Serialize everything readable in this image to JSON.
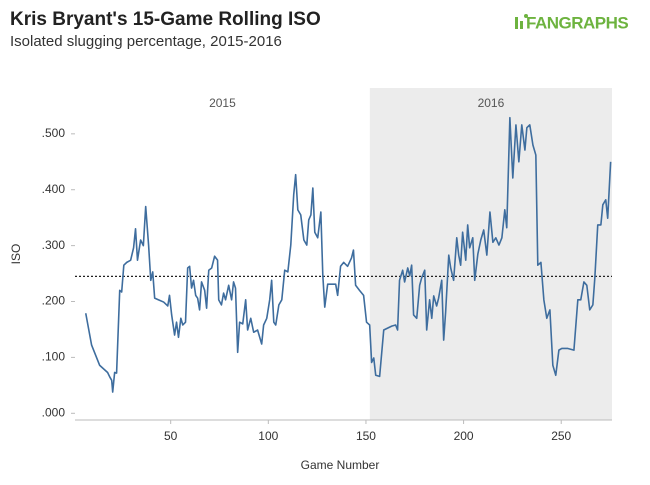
{
  "chart_data": {
    "type": "line",
    "title": "Kris Bryant's 15-Game Rolling ISO",
    "subtitle": "Isolated slugging percentage, 2015-2016",
    "logo": "FANGRAPHS",
    "x_label": "Game Number",
    "y_label": "ISO",
    "color": "#3e6d9e",
    "reference_line": 0.245,
    "periods": [
      {
        "label": "2015",
        "start": 1,
        "end": 152,
        "shaded": false
      },
      {
        "label": "2016",
        "start": 152,
        "end": 276,
        "shaded": true
      }
    ],
    "xlim": [
      1,
      276
    ],
    "ylim": [
      -0.012,
      0.582
    ],
    "xticks": [
      50,
      100,
      150,
      200,
      250
    ],
    "yticks": [
      {
        "value": 0,
        "label": ".000"
      },
      {
        "value": 0.1,
        "label": ".100"
      },
      {
        "value": 0.2,
        "label": ".200"
      },
      {
        "value": 0.3,
        "label": ".300"
      },
      {
        "value": 0.4,
        "label": ".400"
      },
      {
        "value": 0.5,
        "label": ".500"
      }
    ],
    "x": [
      6.5,
      9.5,
      13.6,
      17.7,
      18.8,
      19.8,
      20.3,
      21.3,
      22.3,
      23.9,
      24.9,
      26,
      27.5,
      29.5,
      31,
      32,
      33,
      34.6,
      36,
      37.2,
      38.7,
      39.8,
      40.8,
      41.8,
      43.8,
      46.4,
      48.5,
      49.4,
      50.5,
      52,
      53,
      54,
      55.2,
      56.2,
      57.6,
      58.7,
      59.7,
      60.7,
      61.7,
      62.8,
      63.8,
      64.8,
      65.8,
      67.4,
      68.4,
      69.5,
      71,
      72.5,
      74,
      74.6,
      76,
      77.1,
      78.1,
      79.7,
      81.2,
      82.2,
      83.2,
      84.3,
      85.3,
      86.9,
      88.4,
      89.4,
      91,
      92.5,
      94.5,
      96.6,
      97.6,
      99.2,
      100.7,
      101.7,
      102.8,
      103.8,
      105.4,
      106.9,
      108.4,
      110,
      111.5,
      113,
      114,
      115.1,
      116.6,
      118.2,
      119.7,
      120.7,
      121.8,
      122.8,
      123.8,
      125.3,
      126.9,
      127.9,
      128.9,
      130.4,
      132.4,
      134.5,
      135.5,
      137,
      138.6,
      140.6,
      142.6,
      143.6,
      144.7,
      146.7,
      148.8,
      150.3,
      151.9,
      152.9,
      154,
      155,
      157,
      159.1,
      163.2,
      165.2,
      166.2,
      167.2,
      168.8,
      169.8,
      171.4,
      172.4,
      173.4,
      174.4,
      176,
      177.5,
      178.5,
      180.1,
      181.1,
      182.6,
      183.7,
      184.7,
      186.2,
      187.2,
      188.8,
      189.8,
      190.8,
      192.4,
      193.4,
      194.9,
      196.5,
      197.5,
      198.5,
      199.5,
      201.1,
      202.1,
      203.1,
      204.7,
      205.7,
      207.3,
      208.8,
      210.3,
      211.9,
      213.5,
      215,
      216.5,
      218.1,
      219.6,
      221.1,
      222.1,
      223.7,
      225.2,
      226.8,
      228.3,
      229.8,
      231.4,
      232.4,
      233.9,
      235.5,
      237,
      238,
      239.6,
      241.1,
      242.6,
      244.2,
      245.7,
      247.2,
      248.8,
      250.3,
      253.4,
      256.5,
      258.5,
      260,
      261.6,
      263.1,
      264.6,
      266.2,
      267.2,
      268.7,
      270.3,
      271.3,
      272.8,
      273.8,
      275.3
    ],
    "values": [
      0.179,
      0.122,
      0.086,
      0.073,
      0.065,
      0.059,
      0.038,
      0.073,
      0.072,
      0.22,
      0.217,
      0.265,
      0.27,
      0.274,
      0.296,
      0.33,
      0.274,
      0.31,
      0.3,
      0.37,
      0.3,
      0.238,
      0.253,
      0.206,
      0.203,
      0.199,
      0.192,
      0.211,
      0.176,
      0.14,
      0.163,
      0.136,
      0.17,
      0.158,
      0.163,
      0.26,
      0.263,
      0.224,
      0.238,
      0.211,
      0.206,
      0.185,
      0.235,
      0.22,
      0.188,
      0.256,
      0.26,
      0.281,
      0.274,
      0.203,
      0.194,
      0.215,
      0.203,
      0.229,
      0.203,
      0.235,
      0.224,
      0.109,
      0.163,
      0.16,
      0.203,
      0.149,
      0.17,
      0.145,
      0.149,
      0.124,
      0.158,
      0.17,
      0.203,
      0.238,
      0.163,
      0.158,
      0.194,
      0.203,
      0.256,
      0.253,
      0.301,
      0.391,
      0.427,
      0.364,
      0.355,
      0.31,
      0.301,
      0.346,
      0.355,
      0.403,
      0.324,
      0.314,
      0.36,
      0.247,
      0.19,
      0.231,
      0.231,
      0.231,
      0.211,
      0.263,
      0.27,
      0.263,
      0.278,
      0.292,
      0.229,
      0.22,
      0.211,
      0.163,
      0.158,
      0.091,
      0.099,
      0.068,
      0.066,
      0.149,
      0.156,
      0.158,
      0.149,
      0.238,
      0.256,
      0.235,
      0.26,
      0.246,
      0.265,
      0.176,
      0.17,
      0.229,
      0.242,
      0.256,
      0.149,
      0.203,
      0.17,
      0.21,
      0.192,
      0.206,
      0.238,
      0.131,
      0.181,
      0.283,
      0.26,
      0.238,
      0.314,
      0.283,
      0.265,
      0.324,
      0.274,
      0.337,
      0.296,
      0.314,
      0.238,
      0.285,
      0.31,
      0.328,
      0.283,
      0.36,
      0.306,
      0.314,
      0.301,
      0.314,
      0.364,
      0.332,
      0.529,
      0.421,
      0.516,
      0.45,
      0.516,
      0.471,
      0.511,
      0.516,
      0.48,
      0.462,
      0.265,
      0.27,
      0.203,
      0.17,
      0.185,
      0.086,
      0.068,
      0.113,
      0.116,
      0.116,
      0.113,
      0.203,
      0.203,
      0.235,
      0.229,
      0.185,
      0.194,
      0.242,
      0.337,
      0.337,
      0.373,
      0.382,
      0.349,
      0.45
    ]
  }
}
